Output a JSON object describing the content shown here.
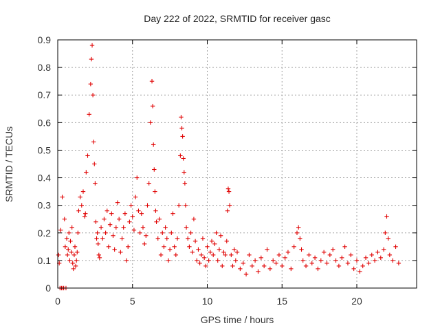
{
  "chart_data": {
    "type": "scatter",
    "title": "Day 222 of 2022, SRMTID for receiver gasc",
    "xlabel": "GPS time / hours",
    "ylabel": "SRMTID / TECUs",
    "xlim": [
      0,
      24
    ],
    "ylim": [
      0,
      0.9
    ],
    "xticks": [
      0,
      5,
      10,
      15,
      20
    ],
    "xtick_labels": [
      "0",
      "5",
      "10",
      "15",
      "20"
    ],
    "yticks": [
      0,
      0.1,
      0.2,
      0.3,
      0.4,
      0.5,
      0.6,
      0.7,
      0.8,
      0.9
    ],
    "ytick_labels": [
      "0",
      "0.1",
      "0.2",
      "0.3",
      "0.4",
      "0.5",
      "0.6",
      "0.7",
      "0.8",
      "0.9"
    ],
    "grid": true,
    "marker": "+",
    "color": "#e00000",
    "series": [
      {
        "name": "SRMTID",
        "x": [
          0.05,
          0.1,
          0.15,
          0.2,
          0.25,
          0.3,
          0.35,
          0.4,
          0.45,
          0.5,
          0.55,
          0.6,
          0.65,
          0.7,
          0.75,
          0.8,
          0.85,
          0.9,
          0.95,
          1.0,
          1.05,
          1.1,
          1.15,
          1.2,
          1.25,
          1.3,
          1.35,
          1.4,
          1.5,
          1.6,
          1.7,
          1.8,
          1.85,
          1.9,
          2.0,
          2.1,
          2.2,
          2.25,
          2.3,
          2.35,
          2.4,
          2.45,
          2.5,
          2.55,
          2.6,
          2.65,
          2.7,
          2.75,
          2.8,
          2.9,
          3.0,
          3.1,
          3.2,
          3.3,
          3.4,
          3.5,
          3.6,
          3.7,
          3.8,
          3.9,
          4.0,
          4.1,
          4.2,
          4.3,
          4.4,
          4.5,
          4.6,
          4.7,
          4.8,
          4.9,
          5.0,
          5.1,
          5.2,
          5.3,
          5.4,
          5.5,
          5.6,
          5.7,
          5.8,
          5.9,
          6.0,
          6.1,
          6.2,
          6.3,
          6.35,
          6.4,
          6.45,
          6.5,
          6.55,
          6.6,
          6.7,
          6.8,
          6.9,
          7.0,
          7.1,
          7.2,
          7.3,
          7.4,
          7.5,
          7.6,
          7.7,
          7.8,
          7.9,
          8.0,
          8.1,
          8.2,
          8.25,
          8.3,
          8.35,
          8.4,
          8.45,
          8.5,
          8.55,
          8.6,
          8.7,
          8.8,
          8.9,
          9.0,
          9.1,
          9.2,
          9.3,
          9.4,
          9.5,
          9.6,
          9.7,
          9.8,
          9.9,
          10.0,
          10.1,
          10.2,
          10.3,
          10.4,
          10.5,
          10.6,
          10.7,
          10.8,
          10.9,
          11.0,
          11.1,
          11.2,
          11.3,
          11.35,
          11.4,
          11.45,
          11.5,
          11.6,
          11.7,
          11.8,
          11.9,
          12.0,
          12.2,
          12.4,
          12.6,
          12.8,
          13.0,
          13.2,
          13.4,
          13.6,
          13.8,
          14.0,
          14.2,
          14.4,
          14.6,
          14.8,
          15.0,
          15.2,
          15.4,
          15.6,
          15.8,
          16.0,
          16.1,
          16.2,
          16.3,
          16.4,
          16.6,
          16.8,
          17.0,
          17.2,
          17.4,
          17.6,
          17.8,
          18.0,
          18.2,
          18.4,
          18.6,
          18.8,
          19.0,
          19.2,
          19.4,
          19.6,
          19.8,
          20.0,
          20.2,
          20.4,
          20.6,
          20.8,
          21.0,
          21.2,
          21.4,
          21.6,
          21.8,
          21.9,
          22.0,
          22.1,
          22.2,
          22.4,
          22.6,
          22.8
        ],
        "y": [
          0.12,
          0.09,
          0.0,
          0.21,
          0.0,
          0.33,
          0.0,
          0.0,
          0.25,
          0.15,
          0.0,
          0.18,
          0.12,
          0.14,
          0.2,
          0.1,
          0.17,
          0.13,
          0.22,
          0.09,
          0.07,
          0.12,
          0.15,
          0.08,
          0.1,
          0.13,
          0.2,
          0.28,
          0.33,
          0.3,
          0.35,
          0.26,
          0.27,
          0.42,
          0.48,
          0.63,
          0.74,
          0.83,
          0.88,
          0.7,
          0.53,
          0.45,
          0.38,
          0.24,
          0.18,
          0.2,
          0.16,
          0.12,
          0.11,
          0.22,
          0.18,
          0.25,
          0.2,
          0.28,
          0.15,
          0.23,
          0.27,
          0.19,
          0.14,
          0.22,
          0.31,
          0.25,
          0.13,
          0.18,
          0.22,
          0.27,
          0.1,
          0.15,
          0.24,
          0.3,
          0.26,
          0.21,
          0.33,
          0.4,
          0.28,
          0.2,
          0.27,
          0.22,
          0.16,
          0.19,
          0.3,
          0.38,
          0.6,
          0.75,
          0.66,
          0.52,
          0.43,
          0.35,
          0.28,
          0.24,
          0.18,
          0.25,
          0.12,
          0.2,
          0.15,
          0.22,
          0.18,
          0.1,
          0.14,
          0.2,
          0.27,
          0.15,
          0.12,
          0.18,
          0.3,
          0.48,
          0.62,
          0.58,
          0.55,
          0.47,
          0.42,
          0.38,
          0.3,
          0.22,
          0.18,
          0.15,
          0.2,
          0.13,
          0.25,
          0.17,
          0.1,
          0.14,
          0.09,
          0.12,
          0.18,
          0.11,
          0.08,
          0.15,
          0.1,
          0.13,
          0.17,
          0.12,
          0.16,
          0.2,
          0.1,
          0.14,
          0.19,
          0.08,
          0.13,
          0.12,
          0.17,
          0.28,
          0.36,
          0.35,
          0.3,
          0.12,
          0.08,
          0.14,
          0.1,
          0.13,
          0.07,
          0.09,
          0.05,
          0.12,
          0.08,
          0.1,
          0.06,
          0.11,
          0.08,
          0.14,
          0.07,
          0.1,
          0.09,
          0.12,
          0.08,
          0.11,
          0.13,
          0.07,
          0.15,
          0.2,
          0.22,
          0.18,
          0.14,
          0.1,
          0.08,
          0.12,
          0.09,
          0.11,
          0.07,
          0.1,
          0.13,
          0.09,
          0.12,
          0.14,
          0.1,
          0.08,
          0.11,
          0.15,
          0.09,
          0.12,
          0.07,
          0.1,
          0.06,
          0.08,
          0.11,
          0.09,
          0.12,
          0.1,
          0.13,
          0.11,
          0.14,
          0.2,
          0.26,
          0.18,
          0.12,
          0.1,
          0.15,
          0.09
        ]
      }
    ]
  }
}
